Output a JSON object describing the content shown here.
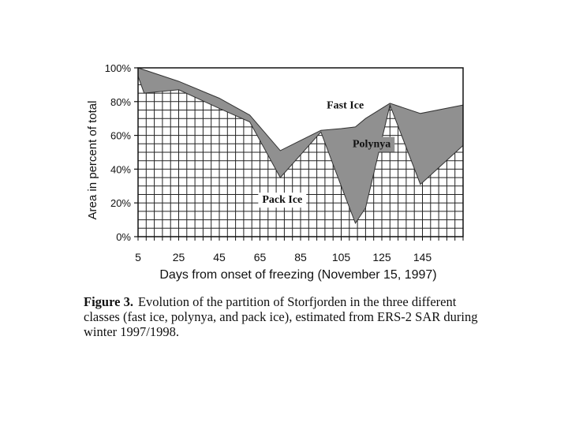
{
  "chart_data": {
    "type": "area",
    "title": "",
    "xlabel": "Days from onset of freezing (November 15, 1997)",
    "ylabel": "Area in percent of total",
    "xlim": [
      5,
      165
    ],
    "ylim": [
      0,
      100
    ],
    "x_ticks": [
      5,
      25,
      45,
      65,
      85,
      105,
      125,
      145
    ],
    "y_ticks": [
      "0%",
      "20%",
      "40%",
      "60%",
      "80%",
      "100%"
    ],
    "grid": true,
    "stacked": true,
    "boundaries": {
      "pack_ice_top": {
        "x": [
          5,
          8,
          25,
          45,
          60,
          75,
          95,
          105,
          112,
          117,
          129,
          144,
          165
        ],
        "y": [
          95,
          85,
          87,
          76,
          68,
          35,
          62,
          30,
          8,
          17,
          78,
          31,
          54
        ]
      },
      "polynya_top": {
        "x": [
          5,
          25,
          45,
          60,
          75,
          95,
          105,
          112,
          117,
          129,
          144,
          165
        ],
        "y": [
          100,
          92,
          82,
          72,
          51,
          63,
          64,
          65,
          70,
          79,
          73,
          78
        ]
      }
    },
    "series": [
      {
        "name": "Pack Ice",
        "color": "#ffffff"
      },
      {
        "name": "Polynya",
        "color": "#909090"
      },
      {
        "name": "Fast Ice",
        "color": "#ffffff"
      }
    ],
    "annotations": [
      {
        "text": "Fast Ice",
        "x": 107,
        "y": 76
      },
      {
        "text": "Polynya",
        "x": 120,
        "y": 53
      },
      {
        "text": "Pack Ice",
        "x": 76,
        "y": 20
      }
    ]
  },
  "caption": {
    "label": "Figure 3.",
    "text": "Evolution of the partition of Storfjorden in the three different classes (fast ice, polynya, and pack ice), estimated from ERS-2 SAR during winter 1997/1998."
  }
}
